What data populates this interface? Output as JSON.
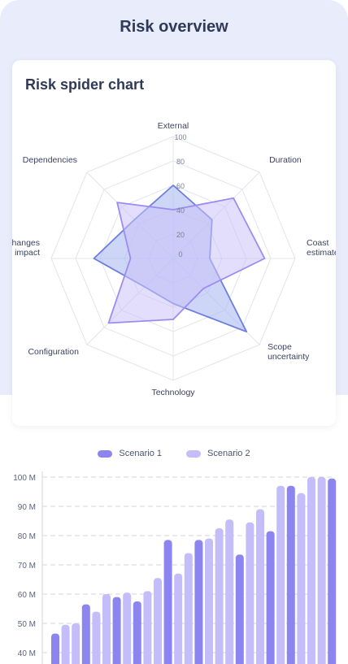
{
  "page": {
    "title": "Risk overview"
  },
  "colors": {
    "series1": "#8c85ef",
    "series2": "#c3bdf9",
    "radar1_stroke": "#6c7fe0",
    "radar1_fill": "#a6b4f3",
    "radar2_stroke": "#9b8df0",
    "radar2_fill": "#cbc2f8"
  },
  "radar": {
    "title": "Risk spider chart",
    "axes": [
      "External",
      "Duration",
      "Coast estimate",
      "Scope uncertainty",
      "Technology",
      "Configuration",
      "Changes impact",
      "Dependencies"
    ],
    "ticks": [
      "0",
      "20",
      "40",
      "60",
      "80",
      "100"
    ],
    "series": [
      {
        "values": [
          60,
          45,
          30,
          85,
          37,
          33,
          65,
          45
        ]
      },
      {
        "values": [
          40,
          70,
          75,
          35,
          50,
          75,
          35,
          65
        ]
      }
    ]
  },
  "chart_data": {
    "type": "bar",
    "series": [
      {
        "name": "Scenario 1",
        "values": [
          46.5,
          56.5,
          59,
          57.5,
          78.5,
          78.5,
          73.5,
          81.5,
          97,
          99.5
        ]
      },
      {
        "name": "Scenario 2",
        "values": [
          49.5,
          50,
          54,
          60,
          60.5,
          61,
          65.5,
          67,
          74,
          79,
          82.5,
          85.5,
          84.5,
          89,
          97,
          94.5,
          100,
          100
        ]
      }
    ],
    "ylim": [
      38,
      100
    ],
    "yticks": [
      "40 M",
      "50 M",
      "60 M",
      "70 M",
      "80 M",
      "90 M",
      "100 M"
    ],
    "order": [
      1,
      2,
      2,
      1,
      2,
      2,
      1,
      2,
      1,
      2,
      2,
      1,
      2,
      2,
      1,
      2,
      2,
      2,
      1,
      2,
      2,
      1,
      2,
      1,
      2,
      2,
      2,
      1,
      2
    ]
  }
}
